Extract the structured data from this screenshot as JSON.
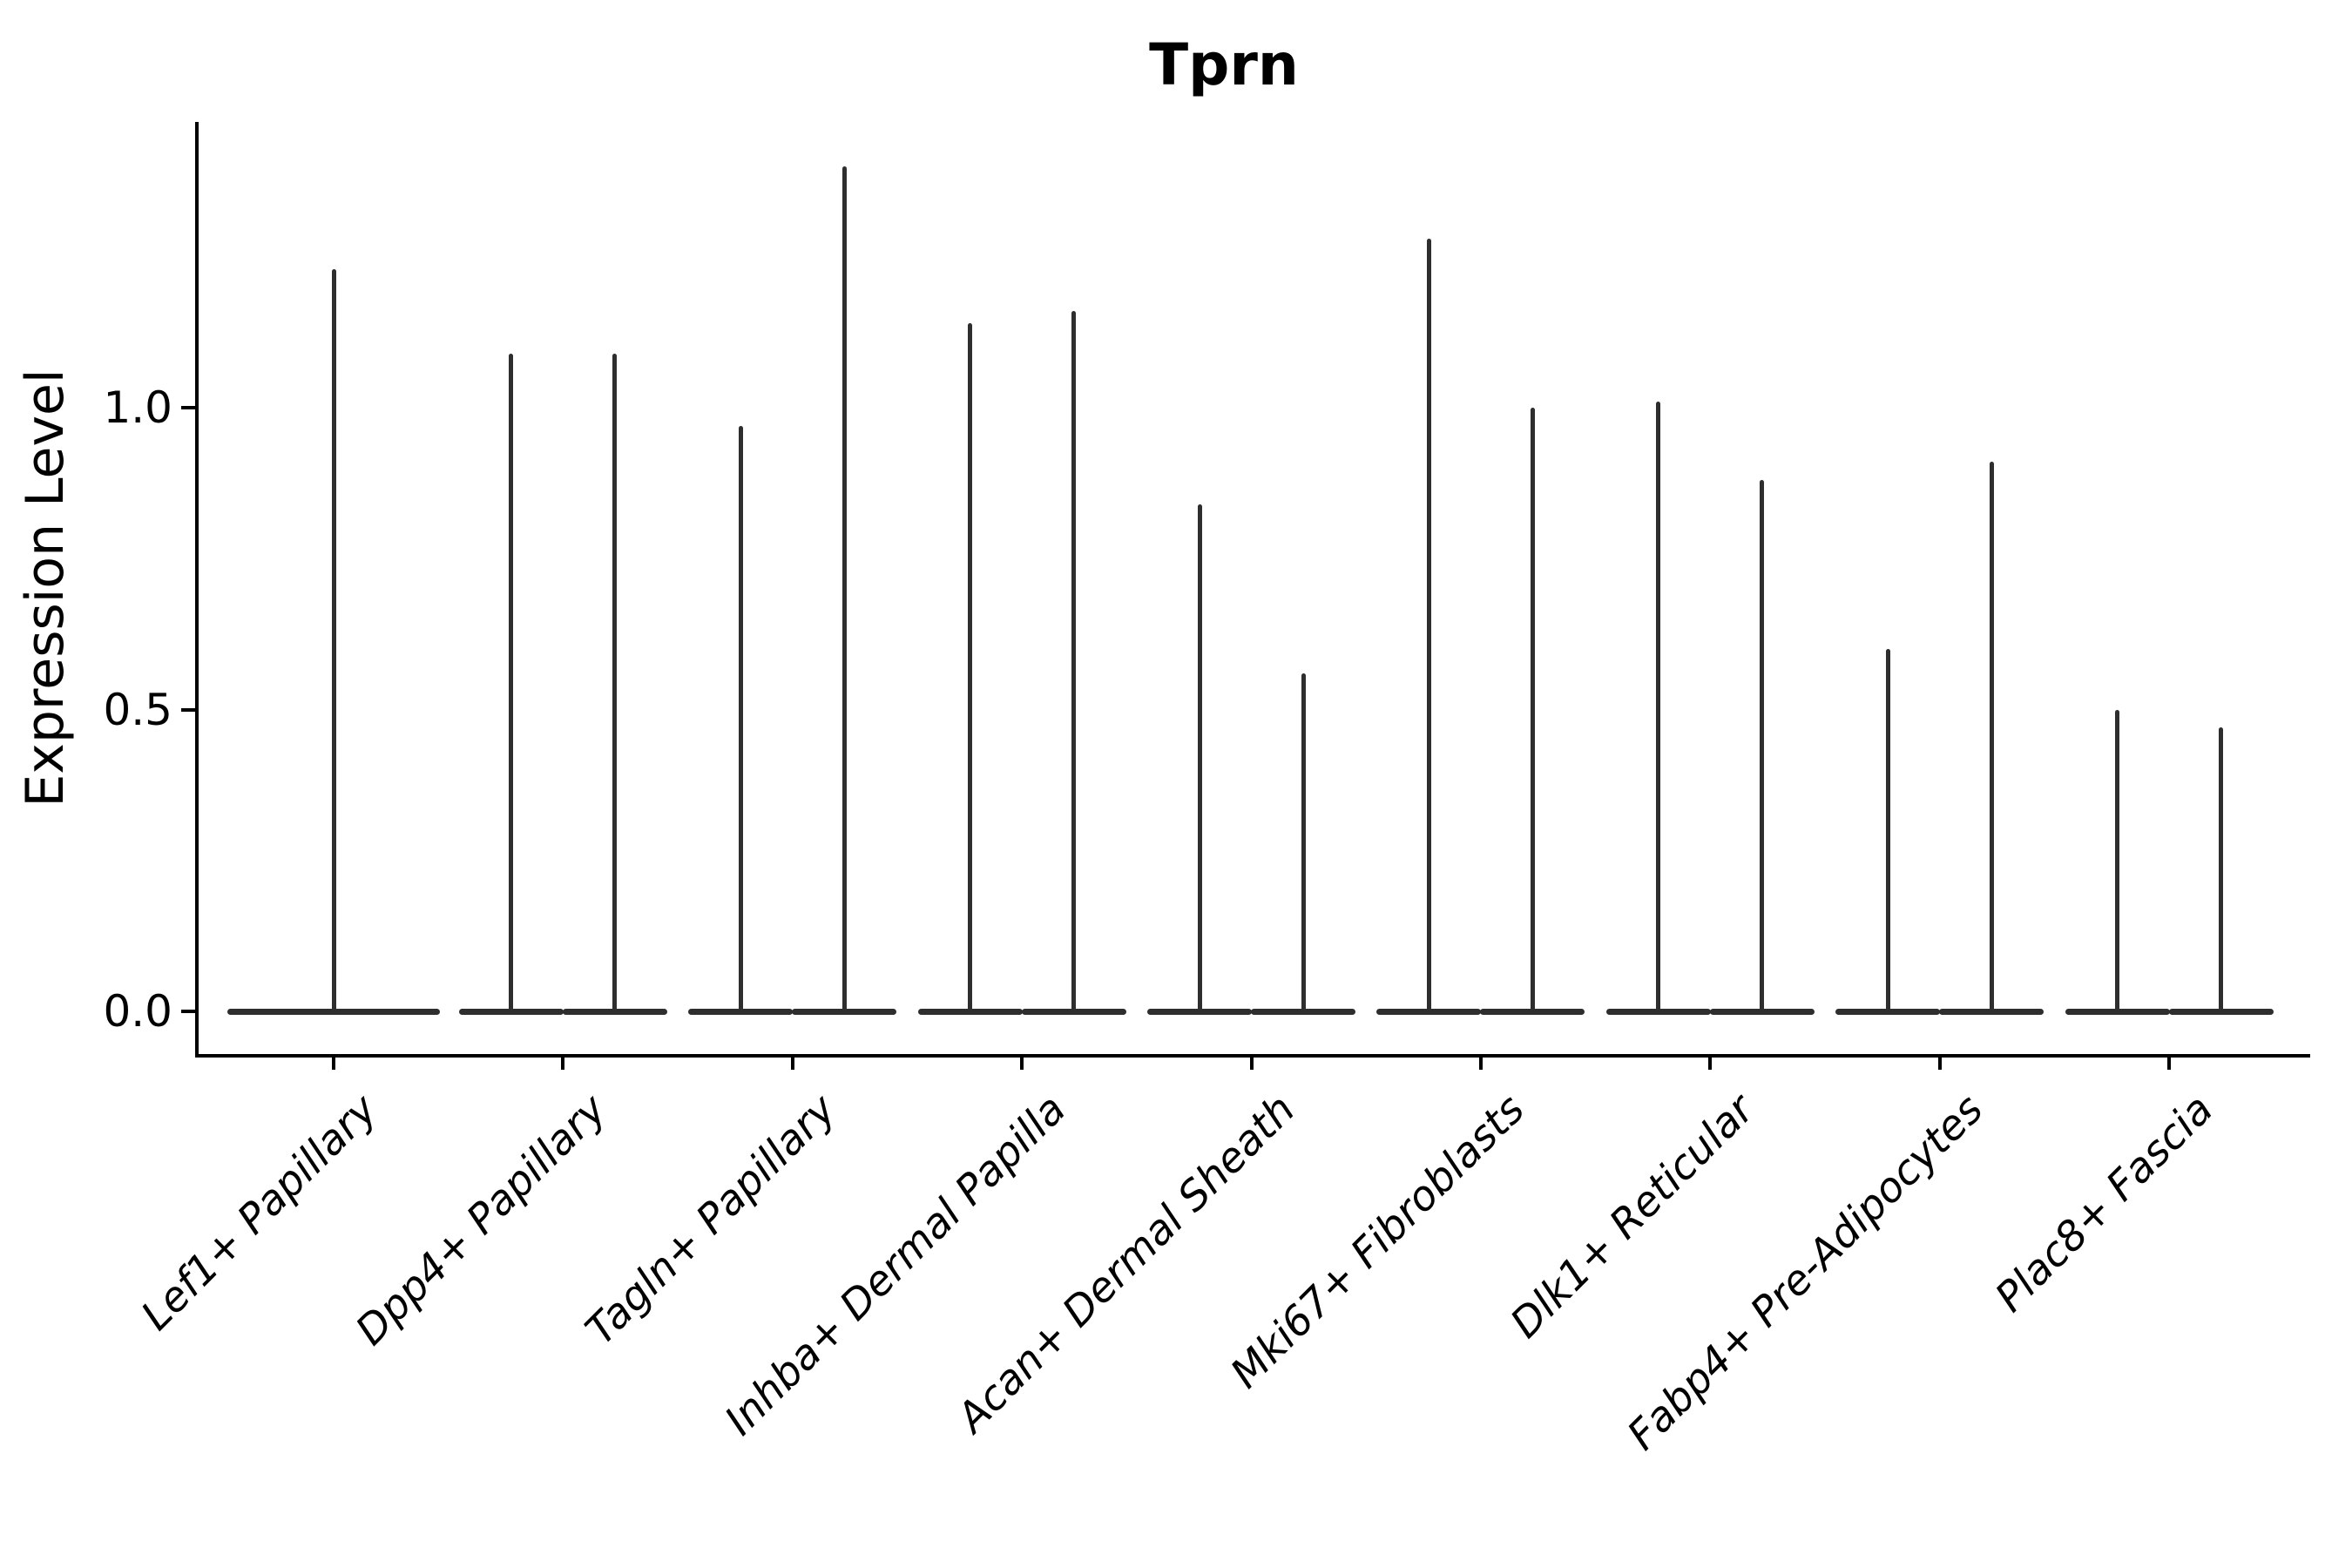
{
  "title": "Tprn",
  "y_axis": {
    "label": "Expression Level",
    "tick_labels": [
      "0.0",
      "0.5",
      "1.0"
    ]
  },
  "style": {
    "violin_color": "#2e2e2e",
    "axis_color": "#000000",
    "background": "#ffffff"
  },
  "chart_data": {
    "type": "violin",
    "title": "Tprn",
    "xlabel": "",
    "ylabel": "Expression Level",
    "yticks": [
      0.0,
      0.5,
      1.0
    ],
    "ylim": [
      -0.07,
      1.47
    ],
    "grid": false,
    "legend": "none",
    "baseline_value": 0.0,
    "description": "Violin plot of Tprn expression; each violin is flat at 0 with a thin spike to its maximum. Most categories contain two side-by-side violins; the first category has a single centered violin.",
    "categories": [
      "Lef1+ Papillary",
      "Dpp4+ Papillary",
      "Tagln+ Papillary",
      "Inhba+ Dermal Papilla",
      "Acan+ Dermal Sheath",
      "Mki67+ Fibroblasts",
      "Dlk1+ Reticular",
      "Fabp4+ Pre-Adipocytes",
      "Plac8+ Fascia"
    ],
    "violins": [
      {
        "category": "Lef1+ Papillary",
        "max_expression": [
          1.23
        ]
      },
      {
        "category": "Dpp4+ Papillary",
        "max_expression": [
          1.09,
          1.09
        ]
      },
      {
        "category": "Tagln+ Papillary",
        "max_expression": [
          0.97,
          1.4
        ]
      },
      {
        "category": "Inhba+ Dermal Papilla",
        "max_expression": [
          1.14,
          1.16
        ]
      },
      {
        "category": "Acan+ Dermal Sheath",
        "max_expression": [
          0.84,
          0.56
        ]
      },
      {
        "category": "Mki67+ Fibroblasts",
        "max_expression": [
          1.28,
          1.0
        ]
      },
      {
        "category": "Dlk1+ Reticular",
        "max_expression": [
          1.01,
          0.88
        ]
      },
      {
        "category": "Fabp4+ Pre-Adipocytes",
        "max_expression": [
          0.6,
          0.91
        ]
      },
      {
        "category": "Plac8+ Fascia",
        "max_expression": [
          0.5,
          0.47
        ]
      }
    ]
  }
}
